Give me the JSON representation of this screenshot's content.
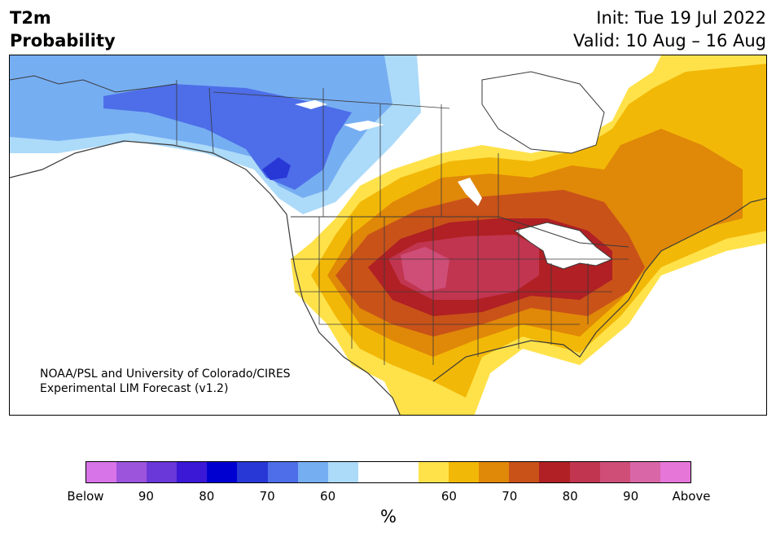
{
  "header": {
    "title_line1": "T2m",
    "title_line2": "Probability",
    "init": "Init: Tue 19 Jul 2022",
    "valid": "Valid: 10 Aug – 16 Aug"
  },
  "credit": {
    "line1": "NOAA/PSL and University of Colorado/CIRES",
    "line2": "Experimental LIM Forecast (v1.2)"
  },
  "colorbar": {
    "unit": "%",
    "segments": [
      "#d774e8",
      "#9c54dd",
      "#6a37d8",
      "#3a18d6",
      "#0000d0",
      "#2838d6",
      "#4d6ee8",
      "#76aef2",
      "#acdaf9",
      "#ffffff",
      "#ffffff",
      "#ffe24a",
      "#f2b807",
      "#e08808",
      "#c95219",
      "#b02024",
      "#c13550",
      "#cf4e78",
      "#d967a8",
      "#e676d8"
    ],
    "tick_labels": [
      "Below",
      "90",
      "80",
      "70",
      "60",
      "60",
      "70",
      "80",
      "90",
      "Above"
    ]
  },
  "map": {
    "colors": {
      "below_50": "#76aef2",
      "below_60": "#4d6ee8",
      "below_70": "#2838d6",
      "below_40": "#acdaf9",
      "above_40": "#ffe24a",
      "above_50": "#f2b807",
      "above_60": "#e08808",
      "above_70": "#c95219",
      "above_80": "#b02024",
      "above_85": "#c13550",
      "above_90": "#cf4e78",
      "boundary": "#3a3a3a"
    }
  }
}
